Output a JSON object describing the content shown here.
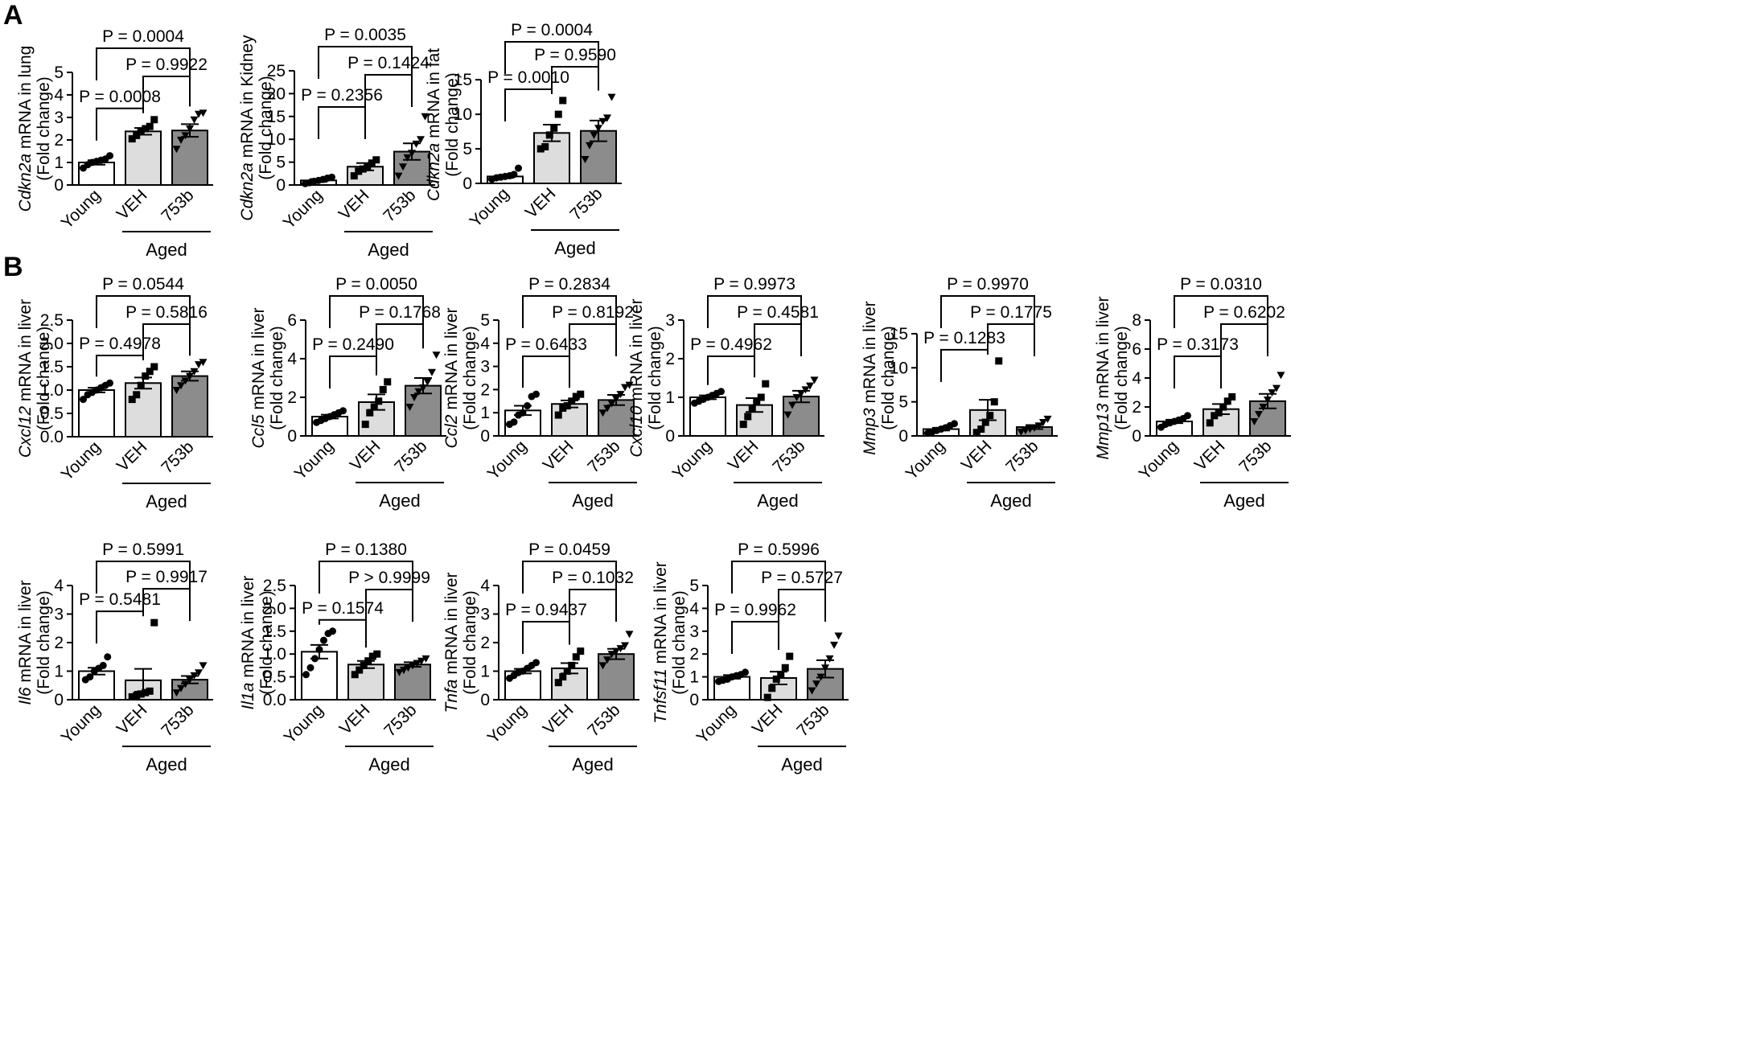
{
  "panels": [
    {
      "letter": "A"
    },
    {
      "letter": "B"
    }
  ],
  "chart_data": [
    {
      "type": "bar",
      "panel": "A",
      "gene": "Cdkn2a",
      "ylabel_rest": " mRNA in lung",
      "ylabel2": "(Fold change)",
      "categories": [
        "Young",
        "VEH",
        "753b"
      ],
      "group_label": "Aged",
      "values": [
        1.0,
        2.38,
        2.42
      ],
      "sem": [
        0.1,
        0.15,
        0.28
      ],
      "ylim": [
        0,
        5
      ],
      "yticks": [
        "0",
        "1",
        "2",
        "3",
        "4",
        "5"
      ],
      "points": [
        [
          0.75,
          0.9,
          1.0,
          1.05,
          1.1,
          1.15,
          1.3
        ],
        [
          2.05,
          2.2,
          2.4,
          2.5,
          2.6,
          2.9
        ],
        [
          1.6,
          2.0,
          2.2,
          2.5,
          2.9,
          3.15,
          3.2
        ]
      ],
      "pvalues": [
        {
          "label": "P = 0.0008",
          "from": 0,
          "to": 1
        },
        {
          "label": "P = 0.9922",
          "from": 1,
          "to": 2
        },
        {
          "label": "P = 0.0004",
          "from": 0,
          "to": 2
        }
      ]
    },
    {
      "type": "bar",
      "panel": "A",
      "gene": "Cdkn2a",
      "ylabel_rest": " mRNA in Kidney",
      "ylabel2": "(Fold change)",
      "categories": [
        "Young",
        "VEH",
        "753b"
      ],
      "group_label": "Aged",
      "values": [
        1.0,
        4.0,
        7.3
      ],
      "sem": [
        0.3,
        0.8,
        1.8
      ],
      "ylim": [
        0,
        25
      ],
      "yticks": [
        "0",
        "5",
        "10",
        "15",
        "20",
        "25"
      ],
      "points": [
        [
          0.3,
          0.5,
          0.8,
          1.0,
          1.2,
          1.5,
          1.7
        ],
        [
          2.0,
          3.0,
          3.5,
          4.0,
          4.8,
          5.5
        ],
        [
          2.0,
          4.0,
          6.0,
          7.0,
          9.0,
          10.0,
          15.0
        ]
      ],
      "pvalues": [
        {
          "label": "P = 0.2356",
          "from": 0,
          "to": 1
        },
        {
          "label": "P = 0.1424",
          "from": 1,
          "to": 2
        },
        {
          "label": "P = 0.0035",
          "from": 0,
          "to": 2
        }
      ]
    },
    {
      "type": "bar",
      "panel": "A",
      "gene": "Cdkn2a",
      "ylabel_rest": " mRNA in fat",
      "ylabel2": "(Fold change)",
      "categories": [
        "Young",
        "VEH",
        "753b"
      ],
      "group_label": "Aged",
      "values": [
        1.0,
        7.3,
        7.6
      ],
      "sem": [
        0.2,
        1.2,
        1.5
      ],
      "ylim": [
        0,
        17
      ],
      "yticks": [
        "0",
        "5",
        "10",
        "15"
      ],
      "points": [
        [
          0.6,
          0.8,
          0.9,
          1.0,
          1.1,
          1.3,
          2.2
        ],
        [
          5.0,
          5.3,
          7.0,
          8.0,
          10.0,
          12.0
        ],
        [
          3.5,
          5.5,
          7.0,
          8.0,
          9.0,
          9.5,
          12.5
        ]
      ],
      "pvalues": [
        {
          "label": "P = 0.0010",
          "from": 0,
          "to": 1
        },
        {
          "label": "P = 0.9590",
          "from": 1,
          "to": 2
        },
        {
          "label": "P = 0.0004",
          "from": 0,
          "to": 2
        }
      ]
    },
    {
      "type": "bar",
      "panel": "B",
      "gene": "Cxcl12",
      "ylabel_rest": " mRNA in liver",
      "ylabel2": "(Fold change)",
      "categories": [
        "Young",
        "VEH",
        "753b"
      ],
      "group_label": "Aged",
      "values": [
        1.0,
        1.15,
        1.3
      ],
      "sem": [
        0.05,
        0.12,
        0.1
      ],
      "ylim": [
        0,
        2.5
      ],
      "yticks": [
        "0.0",
        "0.5",
        "1.0",
        "1.5",
        "2.0",
        "2.5"
      ],
      "points": [
        [
          0.8,
          0.9,
          0.95,
          1.0,
          1.05,
          1.1,
          1.15
        ],
        [
          0.8,
          0.9,
          1.1,
          1.3,
          1.4,
          1.5
        ],
        [
          1.0,
          1.1,
          1.2,
          1.3,
          1.4,
          1.55,
          1.6
        ]
      ],
      "pvalues": [
        {
          "label": "P = 0.4978",
          "from": 0,
          "to": 1
        },
        {
          "label": "P = 0.5816",
          "from": 1,
          "to": 2
        },
        {
          "label": "P = 0.0544",
          "from": 0,
          "to": 2
        }
      ]
    },
    {
      "type": "bar",
      "panel": "B",
      "gene": "Ccl5",
      "ylabel_rest": " mRNA in liver",
      "ylabel2": "(Fold change)",
      "categories": [
        "Young",
        "VEH",
        "753b"
      ],
      "group_label": "Aged",
      "values": [
        1.0,
        1.75,
        2.6
      ],
      "sem": [
        0.1,
        0.4,
        0.4
      ],
      "ylim": [
        0,
        6
      ],
      "yticks": [
        "0",
        "2",
        "4",
        "6"
      ],
      "points": [
        [
          0.7,
          0.8,
          0.9,
          1.0,
          1.1,
          1.2,
          1.3
        ],
        [
          0.6,
          1.2,
          1.5,
          1.8,
          2.4,
          2.8
        ],
        [
          1.5,
          2.0,
          2.3,
          2.5,
          2.8,
          3.3,
          4.2
        ]
      ],
      "pvalues": [
        {
          "label": "P = 0.2490",
          "from": 0,
          "to": 1
        },
        {
          "label": "P = 0.1768",
          "from": 1,
          "to": 2
        },
        {
          "label": "P = 0.0050",
          "from": 0,
          "to": 2
        }
      ]
    },
    {
      "type": "bar",
      "panel": "B",
      "gene": "Ccl2",
      "ylabel_rest": " mRNA in liver",
      "ylabel2": "(Fold change)",
      "categories": [
        "Young",
        "VEH",
        "753b"
      ],
      "group_label": "Aged",
      "values": [
        1.1,
        1.38,
        1.55
      ],
      "sem": [
        0.2,
        0.15,
        0.22
      ],
      "ylim": [
        0,
        5
      ],
      "yticks": [
        "0",
        "1",
        "2",
        "3",
        "4",
        "5"
      ],
      "points": [
        [
          0.5,
          0.6,
          0.9,
          1.0,
          1.3,
          1.7,
          1.8
        ],
        [
          0.9,
          1.2,
          1.3,
          1.5,
          1.7,
          1.8
        ],
        [
          1.0,
          1.2,
          1.4,
          1.6,
          1.8,
          2.1,
          2.2
        ]
      ],
      "pvalues": [
        {
          "label": "P = 0.6433",
          "from": 0,
          "to": 1
        },
        {
          "label": "P = 0.8192",
          "from": 1,
          "to": 2
        },
        {
          "label": "P = 0.2834",
          "from": 0,
          "to": 2
        }
      ]
    },
    {
      "type": "bar",
      "panel": "B",
      "gene": "Cxcl10",
      "ylabel_rest": " mRNA in liver",
      "ylabel2": "(Fold change)",
      "categories": [
        "Young",
        "VEH",
        "753b"
      ],
      "group_label": "Aged",
      "values": [
        1.0,
        0.8,
        1.02
      ],
      "sem": [
        0.05,
        0.18,
        0.15
      ],
      "ylim": [
        0,
        3
      ],
      "yticks": [
        "0",
        "1",
        "2",
        "3"
      ],
      "points": [
        [
          0.85,
          0.9,
          0.95,
          1.0,
          1.05,
          1.1,
          1.15
        ],
        [
          0.3,
          0.5,
          0.7,
          0.9,
          1.0,
          1.35
        ],
        [
          0.55,
          0.8,
          1.0,
          1.1,
          1.2,
          1.3,
          1.45
        ]
      ],
      "pvalues": [
        {
          "label": "P = 0.4962",
          "from": 0,
          "to": 1
        },
        {
          "label": "P = 0.4581",
          "from": 1,
          "to": 2
        },
        {
          "label": "P = 0.9973",
          "from": 0,
          "to": 2
        }
      ]
    },
    {
      "type": "bar",
      "panel": "B",
      "gene": "Mmp3",
      "ylabel_rest": " mRNA in liver",
      "ylabel2": "(Fold change)",
      "categories": [
        "Young",
        "VEH",
        "753b"
      ],
      "group_label": "Aged",
      "values": [
        1.0,
        3.8,
        1.3
      ],
      "sem": [
        0.2,
        1.5,
        0.3
      ],
      "ylim": [
        0,
        17
      ],
      "yticks": [
        "0",
        "5",
        "10",
        "15"
      ],
      "points": [
        [
          0.4,
          0.6,
          0.8,
          1.0,
          1.2,
          1.5,
          1.8
        ],
        [
          0.5,
          1.0,
          2.0,
          3.0,
          5.0,
          11.0
        ],
        [
          0.6,
          0.8,
          1.0,
          1.2,
          1.5,
          2.0,
          2.5
        ]
      ],
      "pvalues": [
        {
          "label": "P = 0.1283",
          "from": 0,
          "to": 1
        },
        {
          "label": "P = 0.1775",
          "from": 1,
          "to": 2
        },
        {
          "label": "P = 0.9970",
          "from": 0,
          "to": 2
        }
      ]
    },
    {
      "type": "bar",
      "panel": "B",
      "gene": "Mmp13",
      "ylabel_rest": " mRNA in liver",
      "ylabel2": "(Fold change)",
      "categories": [
        "Young",
        "VEH",
        "753b"
      ],
      "group_label": "Aged",
      "values": [
        1.0,
        1.85,
        2.4
      ],
      "sem": [
        0.12,
        0.35,
        0.5
      ],
      "ylim": [
        0,
        8
      ],
      "yticks": [
        "0",
        "2",
        "4",
        "6",
        "8"
      ],
      "points": [
        [
          0.6,
          0.8,
          0.9,
          1.0,
          1.1,
          1.2,
          1.4
        ],
        [
          0.9,
          1.4,
          1.6,
          2.0,
          2.4,
          2.7
        ],
        [
          1.0,
          1.5,
          2.0,
          2.5,
          3.0,
          3.3,
          4.2
        ]
      ],
      "pvalues": [
        {
          "label": "P = 0.3173",
          "from": 0,
          "to": 1
        },
        {
          "label": "P = 0.6202",
          "from": 1,
          "to": 2
        },
        {
          "label": "P = 0.0310",
          "from": 0,
          "to": 2
        }
      ]
    },
    {
      "type": "bar",
      "panel": "B",
      "gene": "Il6",
      "ylabel_rest": " mRNA in liver",
      "ylabel2": "(Fold change)",
      "categories": [
        "Young",
        "VEH",
        "753b"
      ],
      "group_label": "Aged",
      "values": [
        1.0,
        0.68,
        0.7
      ],
      "sem": [
        0.12,
        0.4,
        0.13
      ],
      "ylim": [
        0,
        4
      ],
      "yticks": [
        "0",
        "1",
        "2",
        "3",
        "4"
      ],
      "points": [
        [
          0.7,
          0.8,
          1.0,
          1.1,
          1.2,
          1.5
        ],
        [
          0.1,
          0.15,
          0.2,
          0.25,
          0.3,
          2.7
        ],
        [
          0.25,
          0.4,
          0.55,
          0.7,
          0.85,
          0.95,
          1.2
        ]
      ],
      "pvalues": [
        {
          "label": "P = 0.5481",
          "from": 0,
          "to": 1
        },
        {
          "label": "P = 0.9917",
          "from": 1,
          "to": 2
        },
        {
          "label": "P = 0.5991",
          "from": 0,
          "to": 2
        }
      ]
    },
    {
      "type": "bar",
      "panel": "B",
      "gene": "Il1a",
      "ylabel_rest": " mRNA in liver",
      "ylabel2": "(Fold change)",
      "categories": [
        "Young",
        "VEH",
        "753b"
      ],
      "group_label": "Aged",
      "values": [
        1.05,
        0.77,
        0.77
      ],
      "sem": [
        0.15,
        0.08,
        0.05
      ],
      "ylim": [
        0,
        2.5
      ],
      "yticks": [
        "0.0",
        "0.5",
        "1.0",
        "1.5",
        "2.0",
        "2.5"
      ],
      "points": [
        [
          0.55,
          0.7,
          0.9,
          1.1,
          1.3,
          1.45,
          1.5
        ],
        [
          0.55,
          0.65,
          0.75,
          0.85,
          0.95,
          1.0
        ],
        [
          0.6,
          0.65,
          0.7,
          0.75,
          0.8,
          0.85,
          0.9
        ]
      ],
      "pvalues": [
        {
          "label": "P = 0.1574",
          "from": 0,
          "to": 1
        },
        {
          "label": "P > 0.9999",
          "from": 1,
          "to": 2
        },
        {
          "label": "P = 0.1380",
          "from": 0,
          "to": 2
        }
      ]
    },
    {
      "type": "bar",
      "panel": "B",
      "gene": "Tnfa",
      "ylabel_rest": " mRNA in liver",
      "ylabel2": "(Fold change)",
      "categories": [
        "Young",
        "VEH",
        "753b"
      ],
      "group_label": "Aged",
      "values": [
        1.0,
        1.1,
        1.6
      ],
      "sem": [
        0.08,
        0.18,
        0.18
      ],
      "ylim": [
        0,
        4
      ],
      "yticks": [
        "0",
        "1",
        "2",
        "3",
        "4"
      ],
      "points": [
        [
          0.75,
          0.85,
          0.95,
          1.0,
          1.1,
          1.2,
          1.3
        ],
        [
          0.6,
          0.8,
          1.0,
          1.2,
          1.5,
          1.7
        ],
        [
          1.2,
          1.4,
          1.6,
          1.7,
          1.8,
          1.9,
          2.3
        ]
      ],
      "pvalues": [
        {
          "label": "P = 0.9437",
          "from": 0,
          "to": 1
        },
        {
          "label": "P = 0.1032",
          "from": 1,
          "to": 2
        },
        {
          "label": "P = 0.0459",
          "from": 0,
          "to": 2
        }
      ]
    },
    {
      "type": "bar",
      "panel": "B",
      "gene": "Tnfsf11",
      "ylabel_rest": " mRNA in liver",
      "ylabel2": "(Fold change)",
      "categories": [
        "Young",
        "VEH",
        "753b"
      ],
      "group_label": "Aged",
      "values": [
        1.0,
        0.95,
        1.35
      ],
      "sem": [
        0.08,
        0.28,
        0.38
      ],
      "ylim": [
        0,
        5
      ],
      "yticks": [
        "0",
        "1",
        "2",
        "3",
        "4",
        "5"
      ],
      "points": [
        [
          0.8,
          0.85,
          0.9,
          1.0,
          1.05,
          1.1,
          1.2
        ],
        [
          0.1,
          0.5,
          0.9,
          1.1,
          1.4,
          1.9
        ],
        [
          0.4,
          0.7,
          1.0,
          1.4,
          1.8,
          2.4,
          2.8
        ]
      ],
      "pvalues": [
        {
          "label": "P = 0.9962",
          "from": 0,
          "to": 1
        },
        {
          "label": "P = 0.5727",
          "from": 1,
          "to": 2
        },
        {
          "label": "P = 0.5996",
          "from": 0,
          "to": 2
        }
      ]
    }
  ]
}
